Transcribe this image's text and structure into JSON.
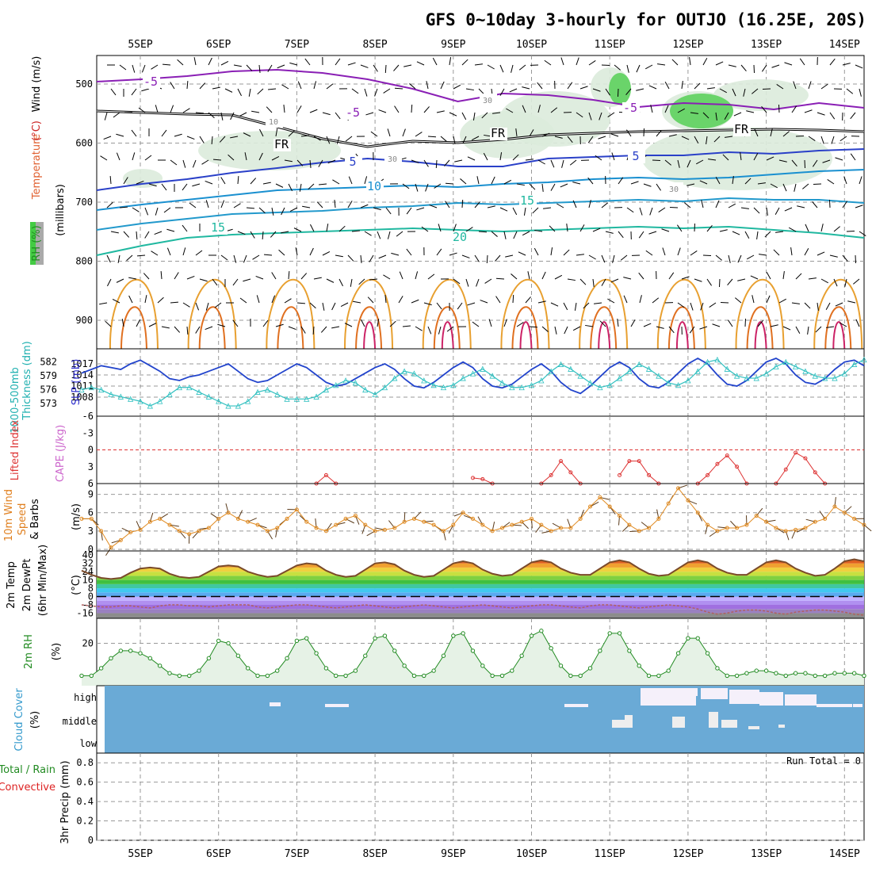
{
  "title": "GFS 0~10day 3-hourly for OUTJO (16.25E, 20S)",
  "date_labels": [
    "5SEP",
    "6SEP",
    "7SEP",
    "8SEP",
    "9SEP",
    "10SEP",
    "11SEP",
    "12SEP",
    "13SEP",
    "14SEP"
  ],
  "run_total": "Run Total = 0",
  "panels": {
    "upper": {
      "ylabels": [
        {
          "text": "RH (%)",
          "color": "#228b22"
        },
        {
          "text": "Temperature",
          "color": "#e06030"
        },
        {
          "text": "(°C)",
          "color": "#cc2222"
        },
        {
          "text": "Wind (m/s)",
          "color": "#000000"
        },
        {
          "text": "(millibars)",
          "color": "#000000"
        }
      ],
      "ticks": [
        "500",
        "600",
        "700",
        "800",
        "900"
      ],
      "contour_labels": [
        "-5",
        "-5",
        "-5",
        "FR",
        "FR",
        "FR",
        "5",
        "5",
        "10",
        "15",
        "15",
        "20",
        "10",
        "30",
        "30",
        "30"
      ]
    },
    "slp": {
      "ylabels": [
        {
          "text": "1000-500mb",
          "color": "#20b0b0"
        },
        {
          "text": "Thickness (dm)",
          "color": "#20b0b0"
        },
        {
          "text": "SLP (mb)",
          "color": "#3030cc"
        }
      ],
      "left_ticks": [
        "582",
        "579",
        "576",
        "573"
      ],
      "right_ticks": [
        "1017",
        "1014",
        "1011",
        "1008"
      ]
    },
    "li": {
      "ylabels": [
        {
          "text": "Lifted Index",
          "color": "#dd3333"
        },
        {
          "text": "CAPE (J/kg)",
          "color": "#cc66cc"
        }
      ],
      "ticks": [
        "-6",
        "-3",
        "0",
        "3",
        "6"
      ]
    },
    "wind10": {
      "ylabels": [
        {
          "text": "10m Wind",
          "color": "#e08020"
        },
        {
          "text": "Speed",
          "color": "#e08020"
        },
        {
          "text": "& Barbs",
          "color": "#000000"
        },
        {
          "text": "(m/s)",
          "color": "#000000"
        }
      ],
      "ticks": [
        "9",
        "6",
        "3",
        "0"
      ]
    },
    "temp": {
      "ylabels": [
        {
          "text": "2m Temp",
          "color": "#000000"
        },
        {
          "text": "2m DewPt",
          "color": "#000000"
        },
        {
          "text": "(6hr Min/Max)",
          "color": "#000000"
        },
        {
          "text": "(°C)",
          "color": "#000000"
        }
      ],
      "ticks": [
        "40",
        "32",
        "24",
        "16",
        "8",
        "0",
        "-8",
        "-16"
      ]
    },
    "rh2m": {
      "ylabels": [
        {
          "text": "2m RH",
          "color": "#228b22"
        },
        {
          "text": "(%)",
          "color": "#000000"
        }
      ],
      "ticks": [
        "20"
      ]
    },
    "cloud": {
      "ylabels": [
        {
          "text": "Cloud Cover",
          "color": "#3399cc"
        },
        {
          "text": "(%)",
          "color": "#000000"
        }
      ],
      "levels": [
        "high",
        "middle",
        "low"
      ]
    },
    "precip": {
      "ylabels": [
        {
          "text": "Total / Rain",
          "color": "#228b22"
        },
        {
          "text": "Convective",
          "color": "#dd2222"
        },
        {
          "text": "3hr Precip (mm)",
          "color": "#000000"
        }
      ],
      "ticks": [
        "0.8",
        "0.6",
        "0.4",
        "0.2",
        "0"
      ]
    }
  },
  "chart_data": [
    {
      "type": "line",
      "panel": "slp",
      "x_step_hours": 3,
      "start": "4SEP 18Z",
      "series": [
        {
          "name": "SLP (mb)",
          "color": "#2244cc",
          "ylim": [
            1005,
            1020
          ],
          "values": [
            1014.5,
            1015.5,
            1016.5,
            1016,
            1015.5,
            1017,
            1018,
            1016.5,
            1015,
            1013,
            1012.5,
            1013.5,
            1014,
            1015,
            1016,
            1017,
            1015,
            1013,
            1012,
            1012.5,
            1014,
            1015.5,
            1017,
            1016,
            1014,
            1012,
            1011,
            1011.5,
            1013,
            1014.5,
            1016,
            1017,
            1015.5,
            1013,
            1011,
            1010.5,
            1012,
            1014,
            1016,
            1017.5,
            1016,
            1013,
            1011,
            1010.5,
            1011.5,
            1013.5,
            1015.5,
            1017,
            1015,
            1012,
            1010,
            1009,
            1011,
            1013.5,
            1016,
            1017.5,
            1016,
            1013,
            1011,
            1010.5,
            1012,
            1014.5,
            1017,
            1018.5,
            1017,
            1014,
            1011.5,
            1011,
            1012.5,
            1015,
            1017.5,
            1018.5,
            1017,
            1014,
            1012,
            1011.5,
            1013,
            1015.5,
            1017.5,
            1018,
            1016.5,
            1014,
            1013.5,
            1014.5,
            1016.5
          ]
        },
        {
          "name": "1000-500mb Thickness (dm)",
          "color": "#30c0c0",
          "ylim": [
            572,
            584
          ],
          "values": [
            576,
            576.5,
            576,
            575,
            574.5,
            574,
            573.5,
            572.5,
            573.5,
            575,
            576.5,
            576.5,
            575.5,
            574.5,
            573.5,
            572.5,
            572.5,
            573.5,
            575.5,
            576,
            575,
            574,
            574,
            574,
            574.5,
            576,
            577,
            578,
            577.5,
            576,
            575,
            576.5,
            578.5,
            580,
            579.5,
            578,
            577,
            576.5,
            577,
            578.5,
            579.5,
            580.5,
            579,
            577.5,
            576.5,
            576.5,
            577,
            578,
            580,
            581.5,
            580.5,
            579,
            577.5,
            576.5,
            577,
            578.5,
            580,
            581.5,
            580.5,
            579,
            577.5,
            577,
            578,
            580,
            582,
            582.5,
            580.5,
            579,
            578.5,
            578.5,
            579.5,
            581,
            582,
            581,
            580,
            579,
            578.5,
            578.5,
            579.5,
            581.5,
            582.5,
            581.5,
            579.5,
            578.5,
            578.5,
            579
          ]
        }
      ]
    },
    {
      "type": "line",
      "panel": "lifted_index",
      "series": [
        {
          "name": "Lifted Index",
          "color": "#dd3333",
          "ylim": [
            -6,
            6
          ],
          "segments": [
            {
              "start_hour": 72,
              "values": [
                6,
                4.5,
                6
              ]
            },
            {
              "start_hour": 120,
              "values": [
                5,
                5.2,
                6
              ]
            },
            {
              "start_hour": 141,
              "values": [
                6,
                4.5,
                2,
                4,
                6
              ]
            },
            {
              "start_hour": 165,
              "values": [
                4.5,
                2,
                2,
                4.5,
                6
              ]
            },
            {
              "start_hour": 189,
              "values": [
                6,
                4.5,
                2.5,
                1,
                3,
                6
              ]
            },
            {
              "start_hour": 213,
              "values": [
                6,
                3.5,
                0.5,
                1.5,
                4,
                6
              ]
            }
          ]
        }
      ]
    },
    {
      "type": "line",
      "panel": "wind10",
      "series": [
        {
          "name": "10m Wind Speed (m/s)",
          "color": "#e08a20",
          "ylim": [
            0,
            10.5
          ],
          "values": [
            5,
            5,
            3,
            0.3,
            1.5,
            2.8,
            3.2,
            4.5,
            5,
            4,
            3,
            2.5,
            3,
            3.5,
            5,
            6,
            5,
            4.5,
            4,
            3,
            3.5,
            5,
            6.5,
            4.5,
            3.5,
            3,
            4,
            5,
            5.5,
            4,
            3,
            3.2,
            3.5,
            4.5,
            5,
            4.5,
            4,
            3,
            4,
            6,
            5,
            4,
            3,
            3.5,
            4,
            4.5,
            5,
            4,
            3,
            3.5,
            3.5,
            5,
            7,
            8.5,
            7,
            5.5,
            4,
            3,
            3.5,
            5,
            7.5,
            10,
            8,
            6,
            4,
            3,
            3.5,
            3.5,
            4,
            5.5,
            4.5,
            3.5,
            3,
            3.2,
            3.5,
            4.5,
            5,
            7,
            6,
            5,
            4,
            3,
            3.5,
            4.5
          ]
        }
      ]
    },
    {
      "type": "area",
      "panel": "temp",
      "series": [
        {
          "name": "2m Temp",
          "color": "#7a4a2a",
          "ylim": [
            -21,
            44
          ],
          "values": [
            25,
            21,
            18,
            17,
            18,
            23,
            27,
            28,
            27,
            22,
            19,
            18,
            19,
            24,
            29,
            30,
            29,
            24,
            21,
            19,
            20,
            25,
            30,
            32,
            31,
            25,
            21,
            19,
            20,
            26,
            32,
            33,
            31,
            25,
            21,
            19,
            20,
            26,
            32,
            34,
            32,
            26,
            22,
            20,
            21,
            27,
            33,
            35,
            33,
            27,
            23,
            21,
            21,
            27,
            33,
            35,
            33,
            27,
            22,
            20,
            21,
            27,
            33,
            35,
            33,
            27,
            23,
            21,
            21,
            27,
            33,
            35,
            33,
            27,
            23,
            20,
            21,
            27,
            34,
            36,
            34,
            28,
            24,
            22,
            24
          ]
        },
        {
          "name": "2m DewPt",
          "color": "#b06060",
          "ylim": [
            -21,
            44
          ],
          "values": [
            -8,
            -9,
            -10,
            -10,
            -9,
            -9,
            -10,
            -11,
            -9,
            -8,
            -8,
            -9,
            -9,
            -10,
            -9,
            -8,
            -8,
            -8,
            -10,
            -11,
            -10,
            -9,
            -8,
            -8,
            -9,
            -10,
            -11,
            -10,
            -9,
            -8,
            -9,
            -10,
            -11,
            -10,
            -9,
            -8,
            -9,
            -10,
            -11,
            -10,
            -9,
            -8,
            -9,
            -10,
            -11,
            -10,
            -9,
            -8,
            -8,
            -9,
            -10,
            -11,
            -9,
            -8,
            -8,
            -9,
            -10,
            -11,
            -10,
            -9,
            -8,
            -9,
            -10,
            -12,
            -15,
            -17,
            -16,
            -14,
            -13,
            -13,
            -14,
            -16,
            -17,
            -15,
            -14,
            -13,
            -13,
            -14,
            -15,
            -17,
            -18,
            -17,
            -16,
            -17,
            -18
          ]
        }
      ]
    },
    {
      "type": "area",
      "panel": "rh2m",
      "series": [
        {
          "name": "2m RH",
          "color": "#228b22",
          "ylim": [
            3,
            30
          ],
          "values": [
            7,
            7,
            10,
            14,
            17,
            17,
            16,
            14,
            11,
            8,
            7,
            7,
            9,
            14,
            21,
            20,
            15,
            10,
            7,
            7,
            9,
            14,
            21,
            22,
            16,
            10,
            7,
            7,
            9,
            15,
            22,
            23,
            17,
            11,
            7,
            7,
            9,
            15,
            23,
            24,
            17,
            11,
            7,
            7,
            9,
            15,
            23,
            25,
            18,
            11,
            7,
            7,
            10,
            17,
            24,
            24,
            17,
            11,
            7,
            7,
            9,
            16,
            22,
            22,
            16,
            10,
            7,
            7,
            8,
            9,
            9,
            8,
            7,
            8,
            8,
            7,
            7,
            8,
            8,
            8,
            7,
            8,
            8,
            7
          ]
        }
      ]
    },
    {
      "type": "heatmap",
      "panel": "cloud",
      "levels": [
        "high",
        "middle",
        "low"
      ],
      "series": [
        {
          "name": "high",
          "values": [
            0,
            0,
            0,
            0,
            0,
            0,
            0,
            0,
            0,
            0,
            0,
            0,
            0,
            0,
            0,
            0,
            0,
            0,
            0,
            0,
            0,
            0,
            0,
            0,
            0,
            0,
            0,
            0,
            0,
            0,
            0,
            0,
            0,
            0,
            0,
            0,
            0,
            0,
            0,
            0,
            0,
            0,
            0,
            0,
            0,
            0,
            0,
            0,
            0,
            0,
            0,
            0,
            0,
            0,
            0,
            0,
            0,
            0,
            0,
            0,
            0,
            0,
            0,
            0,
            0,
            0,
            0,
            0,
            0,
            0,
            0,
            0,
            0,
            0,
            0,
            0,
            0,
            0,
            0,
            0,
            0,
            0,
            0,
            0,
            0
          ]
        },
        {
          "name": "middle",
          "values": [
            0,
            0,
            0,
            0,
            0,
            0,
            0,
            0,
            0,
            0,
            0,
            0,
            0,
            0,
            0,
            0,
            0,
            0,
            0,
            0,
            0,
            0,
            0,
            0,
            0,
            0,
            0,
            0,
            0,
            0,
            0,
            0,
            0,
            0,
            0,
            0,
            0,
            0,
            0,
            0,
            0,
            0,
            0,
            0,
            0,
            0,
            0,
            0,
            0,
            0,
            0,
            0,
            0,
            0,
            0,
            0,
            0,
            0,
            0,
            0,
            0,
            0,
            0,
            0,
            0,
            0,
            0,
            0,
            0,
            0,
            0,
            0,
            0,
            0,
            0,
            0,
            0,
            0,
            0,
            0,
            0,
            0,
            0,
            0,
            0
          ]
        }
      ]
    },
    {
      "type": "bar",
      "panel": "precip",
      "ylim": [
        0,
        0.9
      ],
      "series": [
        {
          "name": "3hr Precip (mm)",
          "values": []
        }
      ]
    }
  ]
}
